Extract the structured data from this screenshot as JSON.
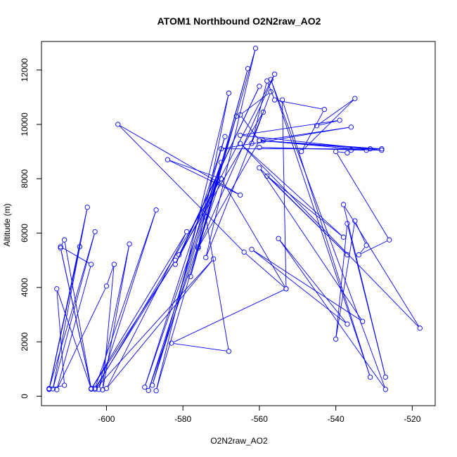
{
  "chart_data": {
    "type": "line",
    "title": "ATOM1 Northbound O2N2raw_AO2",
    "xlabel": "O2N2raw_AO2",
    "ylabel": "Altitude (m)",
    "xlim": [
      -617,
      -514
    ],
    "ylim": [
      -350,
      13050
    ],
    "x_ticks": [
      -600,
      -580,
      -560,
      -540,
      -520
    ],
    "y_ticks": [
      0,
      2000,
      4000,
      6000,
      8000,
      10000,
      12000
    ],
    "grid": false,
    "legend": "none",
    "colors": {
      "series": "#0000ff",
      "axis": "#000000"
    },
    "marker": "open-circle",
    "series": [
      {
        "x": [
          -615,
          -607,
          -615,
          -605,
          -614,
          -603,
          -615,
          -611,
          -613,
          -604,
          -612,
          -604,
          -611,
          -612,
          -604,
          -613,
          -600,
          -598,
          -601,
          -594,
          -602,
          -587,
          -603,
          -582,
          -604,
          -579,
          -600,
          -572,
          -603,
          -570,
          -589,
          -570,
          -590,
          -569,
          -588,
          -566,
          -587,
          -568,
          -576,
          -563,
          -578,
          -561,
          -574,
          -559,
          -581,
          -560,
          -582,
          -556,
          -576,
          -560,
          -565,
          -557,
          -562,
          -558,
          -556,
          -543,
          -549,
          -535,
          -545,
          -539,
          -565,
          -528,
          -560,
          -532,
          -559,
          -528,
          -570,
          -536,
          -560,
          -531,
          -536,
          -537,
          -540,
          -526,
          -534,
          -532,
          -535,
          -540,
          -537,
          -527,
          -538,
          -518,
          -565,
          -538,
          -558,
          -537,
          -560,
          -533,
          -562,
          -537,
          -555,
          -527,
          -557,
          -531,
          -554,
          -553,
          -570,
          -584,
          -565,
          -597,
          -564,
          -553,
          -583,
          -568,
          -574
        ],
        "y": [
          250,
          5500,
          260,
          6950,
          270,
          6050,
          280,
          400,
          3950,
          270,
          5450,
          280,
          5750,
          5500,
          4850,
          240,
          4050,
          4850,
          230,
          5600,
          250,
          6850,
          290,
          5000,
          260,
          6050,
          280,
          5050,
          250,
          8000,
          210,
          8600,
          330,
          9550,
          400,
          10300,
          200,
          11150,
          5500,
          12050,
          4400,
          12800,
          5100,
          10450,
          5200,
          11400,
          4850,
          11850,
          5450,
          9400,
          10350,
          11200,
          9300,
          11600,
          10900,
          10550,
          9000,
          10950,
          9950,
          10150,
          9600,
          9050,
          9150,
          9050,
          9400,
          9100,
          9100,
          9900,
          9400,
          9100,
          9050,
          8950,
          9000,
          5750,
          5200,
          5550,
          6450,
          2100,
          6350,
          700,
          7050,
          2500,
          9300,
          5850,
          8100,
          5200,
          8400,
          2750,
          5400,
          2650,
          5800,
          250,
          11650,
          700,
          10900,
          3950,
          8000,
          8700,
          7400,
          10000,
          5300,
          3950,
          1950,
          1650,
          6600
        ]
      }
    ]
  }
}
